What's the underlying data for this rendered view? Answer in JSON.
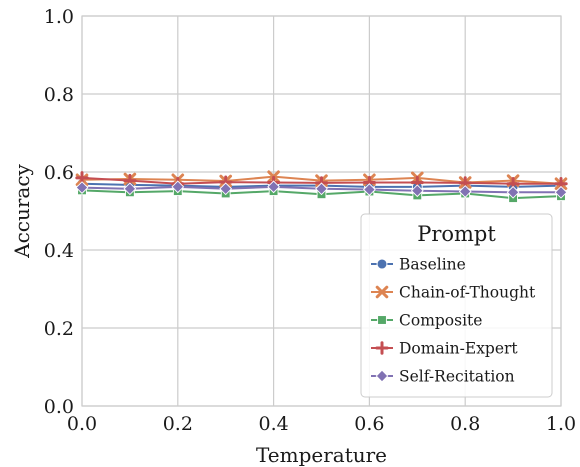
{
  "chart_data": {
    "type": "line",
    "xlabel": "Temperature",
    "ylabel": "Accuracy",
    "xlim": [
      0.0,
      1.0
    ],
    "ylim": [
      0.0,
      1.0
    ],
    "xticks": [
      "0.0",
      "0.2",
      "0.4",
      "0.6",
      "0.8",
      "1.0"
    ],
    "yticks": [
      "0.0",
      "0.2",
      "0.4",
      "0.6",
      "0.8",
      "1.0"
    ],
    "grid": true,
    "legend": {
      "title": "Prompt",
      "placement": "lower-right"
    },
    "x": [
      0.0,
      0.1,
      0.2,
      0.3,
      0.4,
      0.5,
      0.6,
      0.7,
      0.8,
      0.9,
      1.0
    ],
    "series": [
      {
        "name": "Baseline",
        "color": "#4c72b0",
        "marker": "circle",
        "values": [
          0.57,
          0.567,
          0.565,
          0.562,
          0.565,
          0.565,
          0.562,
          0.562,
          0.565,
          0.562,
          0.565
        ]
      },
      {
        "name": "Chain-of-Thought",
        "color": "#dd8452",
        "marker": "x",
        "values": [
          0.58,
          0.582,
          0.58,
          0.577,
          0.588,
          0.578,
          0.58,
          0.585,
          0.573,
          0.578,
          0.57
        ]
      },
      {
        "name": "Composite",
        "color": "#55a868",
        "marker": "square",
        "values": [
          0.553,
          0.548,
          0.551,
          0.545,
          0.551,
          0.543,
          0.55,
          0.54,
          0.545,
          0.533,
          0.538
        ]
      },
      {
        "name": "Domain-Expert",
        "color": "#c44e52",
        "marker": "plus",
        "values": [
          0.585,
          0.578,
          0.57,
          0.574,
          0.573,
          0.572,
          0.573,
          0.573,
          0.572,
          0.57,
          0.57
        ]
      },
      {
        "name": "Self-Recitation",
        "color": "#8172b3",
        "marker": "diamond",
        "values": [
          0.56,
          0.557,
          0.562,
          0.557,
          0.562,
          0.557,
          0.555,
          0.552,
          0.55,
          0.548,
          0.548
        ]
      }
    ]
  }
}
